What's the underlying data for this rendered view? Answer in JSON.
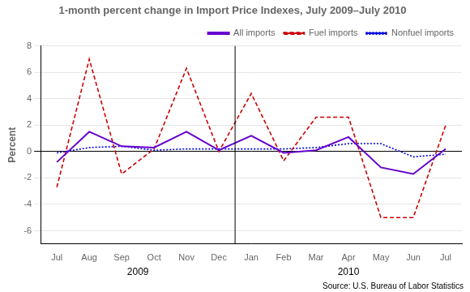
{
  "chart_data": {
    "type": "line",
    "title": "1-month percent change in Import Price Indexes, July 2009–July 2010",
    "y_label": "Percent",
    "source": "Source: U.S. Bureau of Labor Statistics",
    "categories": [
      "Jul",
      "Aug",
      "Sep",
      "Oct",
      "Nov",
      "Dec",
      "Jan",
      "Feb",
      "Mar",
      "Apr",
      "May",
      "Jun",
      "Jul"
    ],
    "series": [
      {
        "name": "All imports",
        "color": "#6600CC",
        "line_style": "solid",
        "values": [
          -0.8,
          1.5,
          0.4,
          0.3,
          1.5,
          0.1,
          1.2,
          -0.1,
          0.1,
          1.1,
          -1.2,
          -1.7,
          0.2
        ]
      },
      {
        "name": "Fuel imports",
        "color": "#CC0000",
        "line_style": "dashed",
        "values": [
          -2.7,
          7.0,
          -1.7,
          0.2,
          6.3,
          0.0,
          4.4,
          -0.7,
          2.6,
          2.6,
          -5.0,
          -5.0,
          2.0
        ]
      },
      {
        "name": "Nonfuel imports",
        "color": "#0000DD",
        "line_style": "dotted",
        "values": [
          -0.1,
          0.3,
          0.4,
          0.1,
          0.2,
          0.2,
          0.2,
          0.2,
          0.3,
          0.6,
          0.6,
          -0.4,
          -0.2
        ]
      }
    ],
    "annotations": [
      {
        "text": "2009",
        "x": 2.5
      },
      {
        "text": "2010",
        "x": 9.0
      }
    ],
    "ylim": [
      -7,
      8
    ],
    "yticks": [
      -6,
      -4,
      -2,
      0,
      2,
      4,
      6,
      8
    ],
    "grid": true,
    "legend": "upper right"
  }
}
